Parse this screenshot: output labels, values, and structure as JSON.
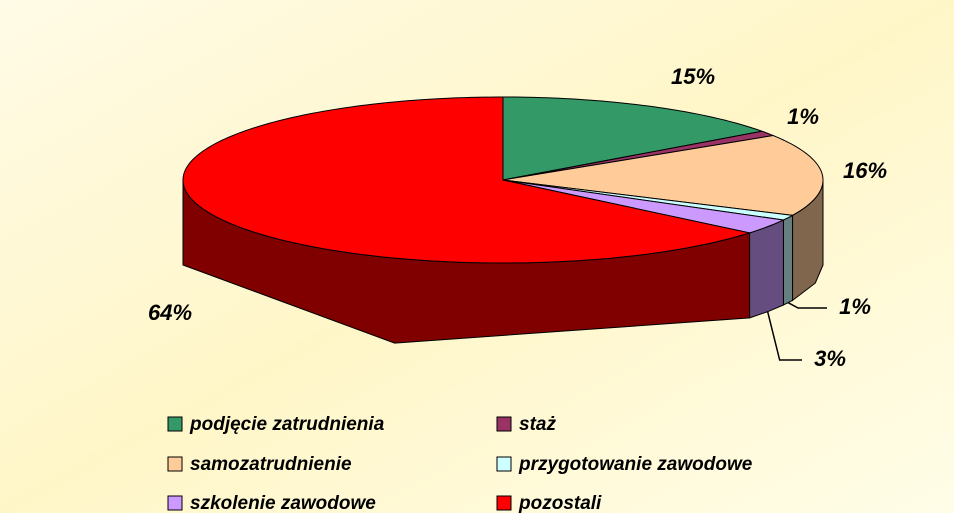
{
  "chart_data": {
    "type": "pie3d",
    "categories": [
      "podjęcie zatrudnienia",
      "staż",
      "samozatrudnienie",
      "przygotowanie zawodowe",
      "szkolenie zawodowe",
      "pozostali"
    ],
    "values": [
      15,
      1,
      16,
      1,
      3,
      64
    ],
    "value_labels": [
      "15%",
      "1%",
      "16%",
      "1%",
      "3%",
      "64%"
    ],
    "colors": [
      "#339966",
      "#993366",
      "#ffcc99",
      "#ccffff",
      "#cc99ff",
      "#ff0000"
    ],
    "legend": "bottom"
  }
}
